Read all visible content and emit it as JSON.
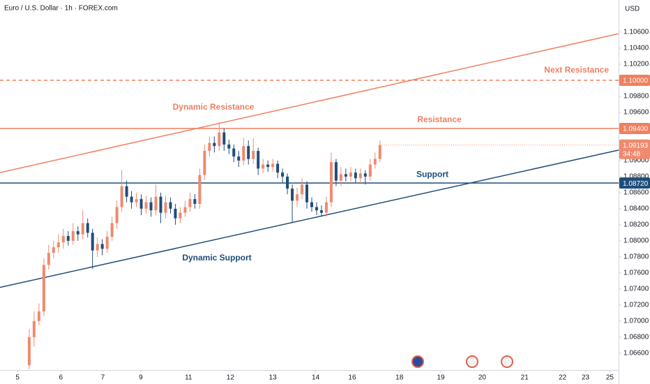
{
  "chart_data": {
    "type": "candlestick",
    "title": "Euro / U.S. Dollar · 1h · FOREX.com",
    "currency": "USD",
    "up_color": "#ef8a6f",
    "down_color": "#1f4d7a",
    "xlim": [
      0,
      127
    ],
    "ylim": [
      1.0639,
      1.11
    ],
    "xticks": [
      {
        "value": 3.6,
        "label": "5"
      },
      {
        "value": 12.5,
        "label": "6"
      },
      {
        "value": 21.1,
        "label": "7"
      },
      {
        "value": 28.9,
        "label": "9"
      },
      {
        "value": 38.7,
        "label": "11"
      },
      {
        "value": 47.3,
        "label": "12"
      },
      {
        "value": 56,
        "label": "13"
      },
      {
        "value": 64.8,
        "label": "14"
      },
      {
        "value": 72.3,
        "label": "16"
      },
      {
        "value": 82,
        "label": "18"
      },
      {
        "value": 90.5,
        "label": "19"
      },
      {
        "value": 99,
        "label": "20"
      },
      {
        "value": 107.7,
        "label": "21"
      },
      {
        "value": 115.5,
        "label": "22"
      },
      {
        "value": 120.2,
        "label": "23"
      },
      {
        "value": 125.2,
        "label": "25"
      }
    ],
    "yticks": [
      {
        "value": 1.066,
        "label": "1.06600"
      },
      {
        "value": 1.068,
        "label": "1.06800"
      },
      {
        "value": 1.07,
        "label": "1.07000"
      },
      {
        "value": 1.072,
        "label": "1.07200"
      },
      {
        "value": 1.074,
        "label": "1.07400"
      },
      {
        "value": 1.076,
        "label": "1.07600"
      },
      {
        "value": 1.078,
        "label": "1.07800"
      },
      {
        "value": 1.08,
        "label": "1.08000"
      },
      {
        "value": 1.082,
        "label": "1.08200"
      },
      {
        "value": 1.084,
        "label": "1.08400"
      },
      {
        "value": 1.086,
        "label": "1.08600"
      },
      {
        "value": 1.088,
        "label": "1.08800"
      },
      {
        "value": 1.09,
        "label": "1.09000"
      },
      {
        "value": 1.096,
        "label": "1.09600"
      },
      {
        "value": 1.098,
        "label": "1.09800"
      },
      {
        "value": 1.102,
        "label": "1.10200"
      },
      {
        "value": 1.104,
        "label": "1.10400"
      },
      {
        "value": 1.106,
        "label": "1.10600"
      }
    ],
    "x": [
      6,
      7,
      8,
      9,
      10,
      11,
      12,
      13,
      14,
      15,
      16,
      17,
      18,
      19,
      20,
      21,
      22,
      23,
      24,
      25,
      26,
      27,
      28,
      29,
      30,
      31,
      32,
      33,
      34,
      35,
      36,
      37,
      38,
      39,
      40,
      41,
      42,
      43,
      44,
      45,
      46,
      47,
      48,
      49,
      50,
      51,
      52,
      53,
      54,
      55,
      56,
      57,
      58,
      59,
      60,
      61,
      62,
      63,
      64,
      65,
      66,
      67,
      68,
      69,
      70,
      71,
      72,
      73,
      74,
      75,
      76,
      77,
      78
    ],
    "open": [
      1.0645,
      1.068,
      1.07,
      1.0712,
      1.077,
      1.0785,
      1.0792,
      1.0798,
      1.0806,
      1.08,
      1.0812,
      1.0808,
      1.0822,
      1.081,
      1.0788,
      1.0796,
      1.079,
      1.0805,
      1.0822,
      1.0842,
      1.0868,
      1.0855,
      1.0848,
      1.0852,
      1.084,
      1.0848,
      1.0838,
      1.0855,
      1.0835,
      1.0848,
      1.084,
      1.0828,
      1.0835,
      1.0842,
      1.0852,
      1.0846,
      1.0882,
      1.0912,
      1.0922,
      1.0918,
      1.0935,
      1.092,
      1.0915,
      1.0905,
      1.09,
      1.0918,
      1.0902,
      1.0912,
      1.089,
      1.0895,
      1.0892,
      1.0896,
      1.0885,
      1.088,
      1.0865,
      1.085,
      1.0858,
      1.087,
      1.0848,
      1.0842,
      1.0838,
      1.0835,
      1.0848,
      1.0898,
      1.0875,
      1.0883,
      1.088,
      1.0885,
      1.0878,
      1.0884,
      1.088,
      1.0895,
      1.0902
    ],
    "high": [
      1.069,
      1.0712,
      1.0722,
      1.0778,
      1.0795,
      1.08,
      1.0808,
      1.0815,
      1.0812,
      1.0822,
      1.0818,
      1.0838,
      1.0828,
      1.0815,
      1.0804,
      1.0802,
      1.0812,
      1.083,
      1.085,
      1.0888,
      1.0875,
      1.0862,
      1.086,
      1.0858,
      1.0856,
      1.0854,
      1.087,
      1.086,
      1.0856,
      1.0854,
      1.0846,
      1.0842,
      1.085,
      1.086,
      1.0858,
      1.089,
      1.092,
      1.093,
      1.093,
      1.0948,
      1.094,
      1.0926,
      1.092,
      1.0912,
      1.0928,
      1.0925,
      1.0928,
      1.0916,
      1.0902,
      1.09,
      1.0902,
      1.09,
      1.089,
      1.0884,
      1.087,
      1.0866,
      1.0878,
      1.0874,
      1.0854,
      1.0848,
      1.0844,
      1.0855,
      1.091,
      1.0902,
      1.0892,
      1.089,
      1.0892,
      1.089,
      1.089,
      1.0888,
      1.0902,
      1.091,
      1.0925
    ],
    "low": [
      1.064,
      1.0668,
      1.0695,
      1.0706,
      1.0764,
      1.0778,
      1.0785,
      1.079,
      1.0794,
      1.0795,
      1.08,
      1.0802,
      1.0804,
      1.0765,
      1.078,
      1.0782,
      1.0785,
      1.08,
      1.0815,
      1.0836,
      1.0848,
      1.084,
      1.0842,
      1.0832,
      1.0834,
      1.083,
      1.0832,
      1.0822,
      1.0828,
      1.0834,
      1.082,
      1.0822,
      1.083,
      1.0836,
      1.084,
      1.084,
      1.0876,
      1.0905,
      1.091,
      1.0912,
      1.0912,
      1.0908,
      1.0898,
      1.0892,
      1.0894,
      1.0895,
      1.0896,
      1.0882,
      1.0884,
      1.0886,
      1.0886,
      1.0878,
      1.0872,
      1.0858,
      1.0822,
      1.0842,
      1.0852,
      1.084,
      1.0836,
      1.0832,
      1.083,
      1.083,
      1.0842,
      1.0868,
      1.0868,
      1.0874,
      1.0874,
      1.0872,
      1.0872,
      1.087,
      1.0875,
      1.089,
      1.0898
    ],
    "close": [
      1.068,
      1.07,
      1.0712,
      1.077,
      1.0785,
      1.0792,
      1.0798,
      1.0806,
      1.08,
      1.0812,
      1.0808,
      1.0822,
      1.081,
      1.0788,
      1.0796,
      1.079,
      1.0805,
      1.0822,
      1.0842,
      1.0868,
      1.0855,
      1.0848,
      1.0852,
      1.084,
      1.0848,
      1.0838,
      1.0855,
      1.0835,
      1.0848,
      1.084,
      1.0828,
      1.0835,
      1.0842,
      1.0852,
      1.0846,
      1.0882,
      1.0912,
      1.0922,
      1.0918,
      1.0935,
      1.092,
      1.0915,
      1.0905,
      1.09,
      1.0918,
      1.0902,
      1.0912,
      1.089,
      1.0895,
      1.0892,
      1.0896,
      1.0885,
      1.088,
      1.0865,
      1.085,
      1.0858,
      1.087,
      1.0848,
      1.0842,
      1.0838,
      1.0835,
      1.0848,
      1.0898,
      1.0875,
      1.0883,
      1.088,
      1.0885,
      1.0878,
      1.0884,
      1.088,
      1.0895,
      1.0902,
      1.09193
    ],
    "countdown": "34:48",
    "levels": [
      {
        "name": "Next Resistance",
        "value": 1.1,
        "value_label": "1.10000",
        "color": "#ef7f5f",
        "dashed": true
      },
      {
        "name": "Resistance",
        "value": 1.094,
        "value_label": "1.09400",
        "color": "#ef7f5f",
        "dashed": false
      },
      {
        "name": "Support",
        "value": 1.0872,
        "value_label": "1.08720",
        "color": "#1f4d7a",
        "dashed": false
      }
    ],
    "trendlines": [
      {
        "name": "Dynamic Resistance",
        "x": [
          0,
          127
        ],
        "y": [
          1.0885,
          1.1058
        ],
        "color": "#ef7f5f"
      },
      {
        "name": "Dynamic Support",
        "x": [
          0,
          127
        ],
        "y": [
          1.0742,
          1.0913
        ],
        "color": "#1f4d7a"
      }
    ]
  }
}
